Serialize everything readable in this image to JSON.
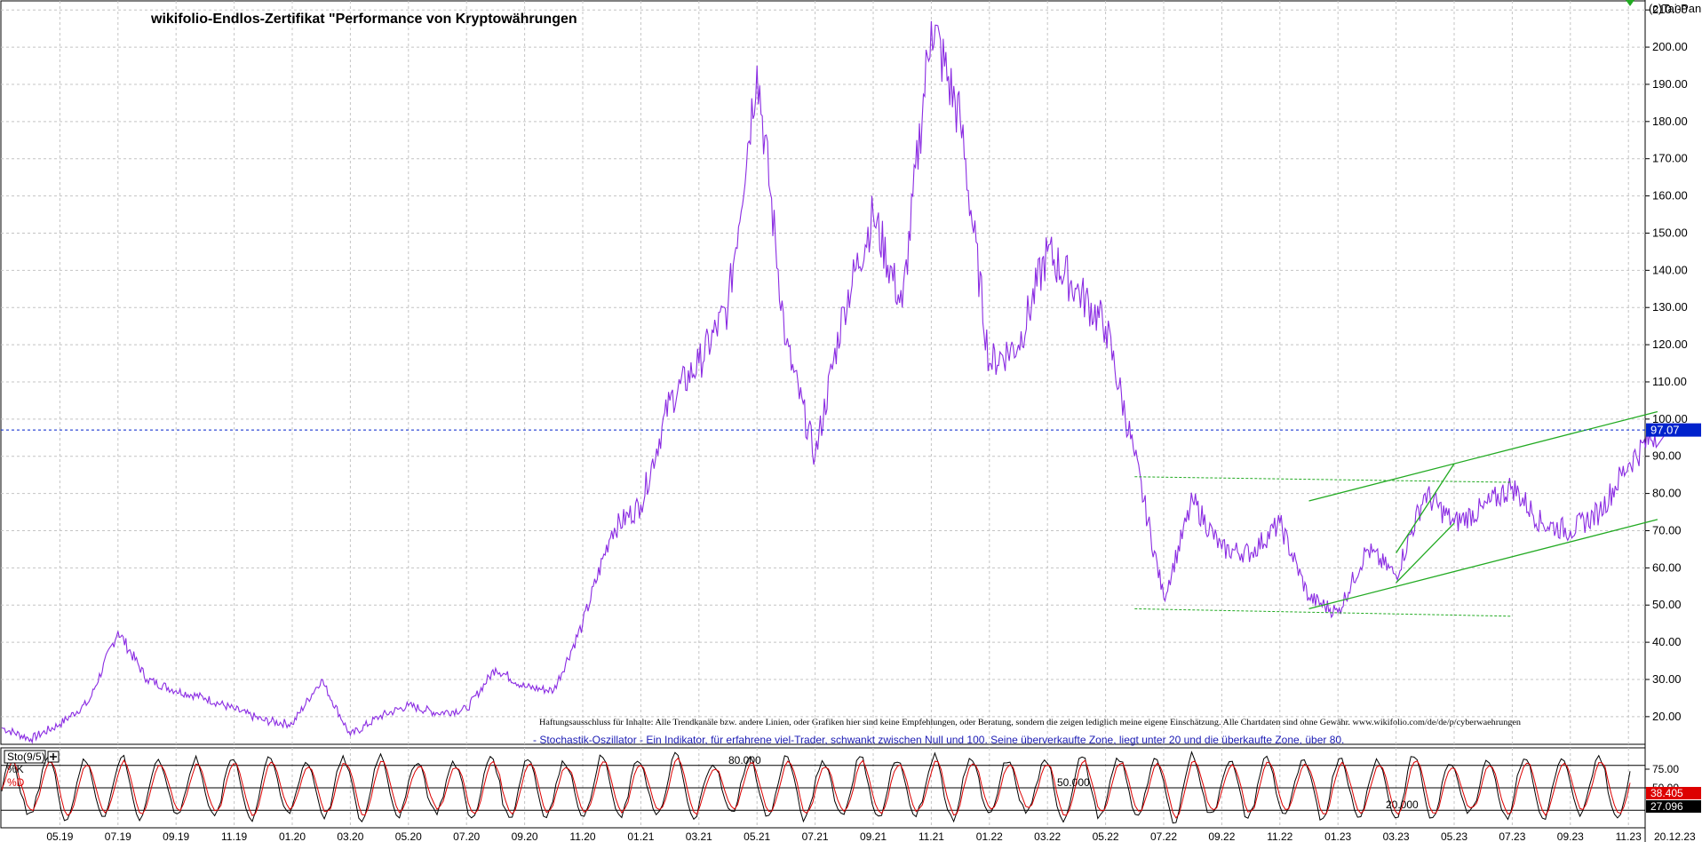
{
  "title": "wikifolio-Endlos-Zertifikat \"Performance von Kryptowährungen",
  "copyright": "(c)Tai-Pan",
  "disclaimer": "Haftungsausschluss für Inhalte: Alle Trendkanäle bzw. andere Linien, oder Grafiken hier sind keine Empfehlungen, oder Beratung, sondern die zeigen lediglich meine eigene Einschätzung. Alle Chartdaten sind ohne Gewähr. www.wikifolio.com/de/de/p/cyberwaehrungen",
  "indicator_caption": "- Stochastik-Oszillator - Ein Indikator, für erfahrene viel-Trader, schwankt zwischen Null und 100. Seine überverkaufte Zone, liegt unter 20 und die überkaufte Zone, über 80.",
  "colors": {
    "price_line": "#8a2be2",
    "trend_line": "#22aa22",
    "last_price_marker": "#0022cc",
    "k_line": "#000000",
    "d_line": "#dd0000",
    "k_badge": "#dd0000",
    "d_badge": "#000000",
    "grid": "#c4c4c4"
  },
  "chart_data": [
    {
      "type": "line",
      "name": "price",
      "y_ticks": [
        "20.00",
        "30.00",
        "40.00",
        "50.00",
        "60.00",
        "70.00",
        "80.00",
        "90.00",
        "100.00",
        "110.00",
        "120.00",
        "130.00",
        "140.00",
        "150.00",
        "160.00",
        "170.00",
        "180.00",
        "190.00",
        "200.00",
        "210.00"
      ],
      "x_ticks": [
        "05.19",
        "07.19",
        "09.19",
        "11.19",
        "01.20",
        "03.20",
        "05.20",
        "07.20",
        "09.20",
        "11.20",
        "01.21",
        "03.21",
        "05.21",
        "07.21",
        "09.21",
        "11.21",
        "01.22",
        "03.22",
        "05.22",
        "07.22",
        "09.22",
        "11.22",
        "01.23",
        "03.23",
        "05.23",
        "07.23",
        "09.23",
        "11.23"
      ],
      "last_date": "20.12.23",
      "ylim": [
        14,
        211
      ],
      "grid": true,
      "last_value": "97.07",
      "series": [
        {
          "x": [
            "03.19",
            "04.19",
            "05.19",
            "06.19",
            "07.19",
            "08.19",
            "09.19",
            "10.19",
            "11.19",
            "12.19",
            "01.20",
            "02.20",
            "03.20",
            "04.20",
            "05.20",
            "06.20",
            "07.20",
            "08.20",
            "09.20",
            "10.20",
            "11.20",
            "12.20",
            "01.21",
            "02.21",
            "03.21",
            "04.21",
            "05.21",
            "06.21",
            "07.21",
            "08.21",
            "09.21",
            "10.21",
            "11.21",
            "12.21",
            "01.22",
            "02.22",
            "03.22",
            "04.22",
            "05.22",
            "06.22",
            "07.22",
            "08.22",
            "09.22",
            "10.22",
            "11.22",
            "12.22",
            "01.23",
            "02.23",
            "03.23",
            "04.23",
            "05.23",
            "06.23",
            "07.23",
            "08.23",
            "09.23",
            "10.23",
            "11.23",
            "12.23"
          ],
          "y": [
            17,
            14,
            18,
            24,
            43,
            30,
            27,
            25,
            22,
            19,
            18,
            30,
            15,
            20,
            23,
            21,
            22,
            33,
            28,
            27,
            45,
            70,
            77,
            105,
            115,
            130,
            195,
            120,
            90,
            130,
            155,
            130,
            207,
            180,
            115,
            120,
            145,
            135,
            125,
            90,
            52,
            78,
            65,
            64,
            72,
            52,
            48,
            65,
            58,
            80,
            72,
            76,
            82,
            72,
            70,
            75,
            88,
            97.07
          ]
        }
      ],
      "trend_lines": [
        {
          "x": [
            "06.22",
            "07.23"
          ],
          "y": [
            84.5,
            83
          ]
        },
        {
          "x": [
            "06.22",
            "07.23"
          ],
          "y": [
            49,
            47
          ]
        },
        {
          "x": [
            "12.22",
            "12.23"
          ],
          "y": [
            49,
            73
          ]
        },
        {
          "x": [
            "12.22",
            "12.23"
          ],
          "y": [
            78,
            102
          ]
        },
        {
          "x": [
            "03.23",
            "05.23"
          ],
          "y": [
            56,
            72
          ]
        },
        {
          "x": [
            "03.23",
            "05.23"
          ],
          "y": [
            64,
            88
          ]
        }
      ]
    },
    {
      "type": "line",
      "name": "Sto(9/5)",
      "series": [
        {
          "name": "%K"
        },
        {
          "name": "%D"
        }
      ],
      "level_labels": [
        "80.000",
        "50.000",
        "20.000"
      ],
      "y_ticks": [
        "75.00",
        "50.00"
      ],
      "k_value": "38.405",
      "d_value": "27.096",
      "k_cycles": [
        0.6,
        0.82,
        0.5,
        0.9,
        0.35,
        0.7,
        0.85,
        0.4,
        0.62,
        0.95,
        0.55,
        0.3,
        0.88,
        0.72,
        0.45,
        0.8,
        0.58,
        0.92,
        0.38,
        0.66,
        0.84,
        0.5,
        0.76,
        0.42,
        0.9,
        0.6,
        0.33,
        0.86,
        0.7,
        0.48,
        0.94,
        0.56,
        0.74,
        0.4,
        0.82,
        0.64,
        0.9,
        0.36,
        0.68,
        0.8,
        0.52,
        0.88
      ]
    }
  ]
}
